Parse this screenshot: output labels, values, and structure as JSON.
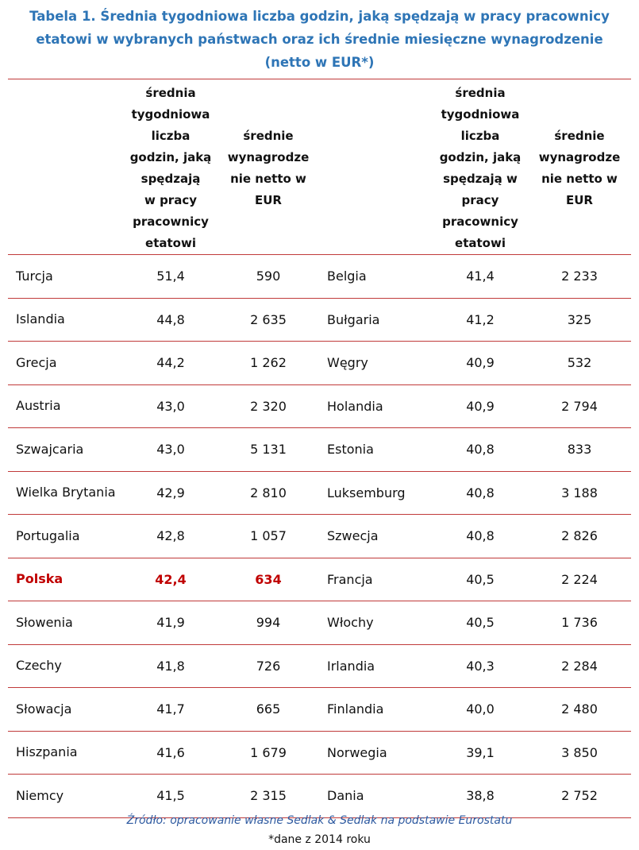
{
  "title": {
    "line1": "Tabela 1. Średnia tygodniowa liczba godzin, jaką spędzają w pracy pracownicy",
    "line2": "etatowi w wybranych państwach oraz ich średnie miesięczne wynagrodzenie",
    "line3": "(netto w EUR*)"
  },
  "header": {
    "hours_left": [
      "średnia",
      "tygodniowa",
      "liczba",
      "godzin, jaką",
      "spędzają",
      "w pracy",
      "pracownicy",
      "etatowi"
    ],
    "salary_left": [
      "średnie",
      "wynagrodze",
      "nie netto w",
      "EUR"
    ],
    "hours_right": [
      "średnia",
      "tygodniowa",
      "liczba",
      "godzin, jaką",
      "spędzają w",
      "pracy",
      "pracownicy",
      "etatowi"
    ],
    "salary_right": [
      "średnie",
      "wynagrodze",
      "nie netto w",
      "EUR"
    ]
  },
  "rows": [
    {
      "country1": "Turcja",
      "hours1": "51,4",
      "salary1": "590",
      "country2": "Belgia",
      "hours2": "41,4",
      "salary2": "2 233"
    },
    {
      "country1": "Islandia",
      "hours1": "44,8",
      "salary1": "2 635",
      "country2": "Bułgaria",
      "hours2": "41,2",
      "salary2": "325"
    },
    {
      "country1": "Grecja",
      "hours1": "44,2",
      "salary1": "1 262",
      "country2": "Węgry",
      "hours2": "40,9",
      "salary2": "532"
    },
    {
      "country1": "Austria",
      "hours1": "43,0",
      "salary1": "2 320",
      "country2": "Holandia",
      "hours2": "40,9",
      "salary2": "2 794"
    },
    {
      "country1": "Szwajcaria",
      "hours1": "43,0",
      "salary1": "5 131",
      "country2": "Estonia",
      "hours2": "40,8",
      "salary2": "833"
    },
    {
      "country1": "Wielka Brytania",
      "hours1": "42,9",
      "salary1": "2 810",
      "country2": "Luksemburg",
      "hours2": "40,8",
      "salary2": "3 188"
    },
    {
      "country1": "Portugalia",
      "hours1": "42,8",
      "salary1": "1 057",
      "country2": "Szwecja",
      "hours2": "40,8",
      "salary2": "2 826"
    },
    {
      "country1": "Polska",
      "hours1": "42,4",
      "salary1": "634",
      "country2": "Francja",
      "hours2": "40,5",
      "salary2": "2 224",
      "highlight": true
    },
    {
      "country1": "Słowenia",
      "hours1": "41,9",
      "salary1": "994",
      "country2": "Włochy",
      "hours2": "40,5",
      "salary2": "1 736"
    },
    {
      "country1": "Czechy",
      "hours1": "41,8",
      "salary1": "726",
      "country2": "Irlandia",
      "hours2": "40,3",
      "salary2": "2 284"
    },
    {
      "country1": "Słowacja",
      "hours1": "41,7",
      "salary1": "665",
      "country2": "Finlandia",
      "hours2": "40,0",
      "salary2": "2 480"
    },
    {
      "country1": "Hiszpania",
      "hours1": "41,6",
      "salary1": "1 679",
      "country2": "Norwegia",
      "hours2": "39,1",
      "salary2": "3 850"
    },
    {
      "country1": "Niemcy",
      "hours1": "41,5",
      "salary1": "2 315",
      "country2": "Dania",
      "hours2": "38,8",
      "salary2": "2 752"
    }
  ],
  "source": "Źródło: opracowanie własne Sedlak & Sedlak na podstawie Eurostatu",
  "note": "*dane z 2014 roku",
  "colors": {
    "title": "#2e75b6",
    "rule": "#c03a3a",
    "highlight": "#c00000",
    "source": "#2e5aa0"
  }
}
